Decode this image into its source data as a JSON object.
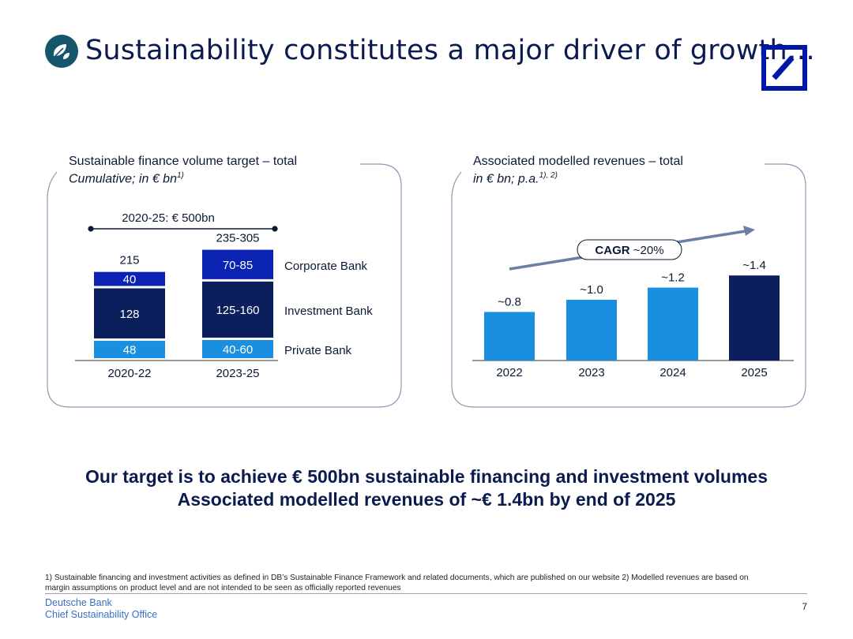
{
  "header": {
    "title": "Sustainability constitutes a major driver of growth…",
    "icon": "leaf-icon",
    "logo": "deutsche-bank-logo",
    "brand_color": "#0018a8"
  },
  "left_panel": {
    "title": "Sustainable finance volume target – total",
    "subtitle": "Cumulative; in € bn",
    "subtitle_sup": "1)"
  },
  "right_panel": {
    "title": "Associated modelled revenues – total",
    "subtitle": "in € bn; p.a.",
    "subtitle_sup": "1), 2)"
  },
  "chart_data": [
    {
      "type": "bar",
      "stacked": true,
      "title": "Sustainable finance volume target – total",
      "subtitle": "Cumulative; in € bn",
      "categories": [
        "2020-22",
        "2023-25"
      ],
      "totals": [
        "215",
        "235-305"
      ],
      "bracket_label": "2020-25: € 500bn",
      "series": [
        {
          "name": "Private Bank",
          "labels": [
            "48",
            "40-60"
          ],
          "values": [
            48,
            50
          ],
          "color": "#1a8fe0"
        },
        {
          "name": "Investment Bank",
          "labels": [
            "128",
            "125-160"
          ],
          "values": [
            128,
            142.5
          ],
          "color": "#0b1f5c"
        },
        {
          "name": "Corporate Bank",
          "labels": [
            "40",
            "70-85"
          ],
          "values": [
            40,
            77.5
          ],
          "color": "#0a23b3"
        }
      ]
    },
    {
      "type": "bar",
      "title": "Associated modelled revenues – total",
      "subtitle": "in € bn; p.a.",
      "categories": [
        "2022",
        "2023",
        "2024",
        "2025"
      ],
      "values": [
        0.8,
        1.0,
        1.2,
        1.4
      ],
      "labels": [
        "~0.8",
        "~1.0",
        "~1.2",
        "~1.4"
      ],
      "colors": [
        "#1a8fe0",
        "#1a8fe0",
        "#1a8fe0",
        "#0b1f5c"
      ],
      "annotation": {
        "bold": "CAGR",
        "text": "~20%"
      }
    }
  ],
  "headline": {
    "line1": "Our target is to achieve € 500bn sustainable financing and investment volumes",
    "line2": "Associated modelled revenues of ~€ 1.4bn by end of 2025"
  },
  "footnotes": {
    "line1": "1) Sustainable financing and investment activities as defined in DB’s Sustainable Finance Framework and related documents, which are published on our website      2) Modelled revenues are based on",
    "line2": "margin assumptions on product level and are not intended to be seen as officially reported revenues"
  },
  "footer": {
    "org_line1": "Deutsche Bank",
    "org_line2": "Chief Sustainability Office",
    "page": "7"
  }
}
